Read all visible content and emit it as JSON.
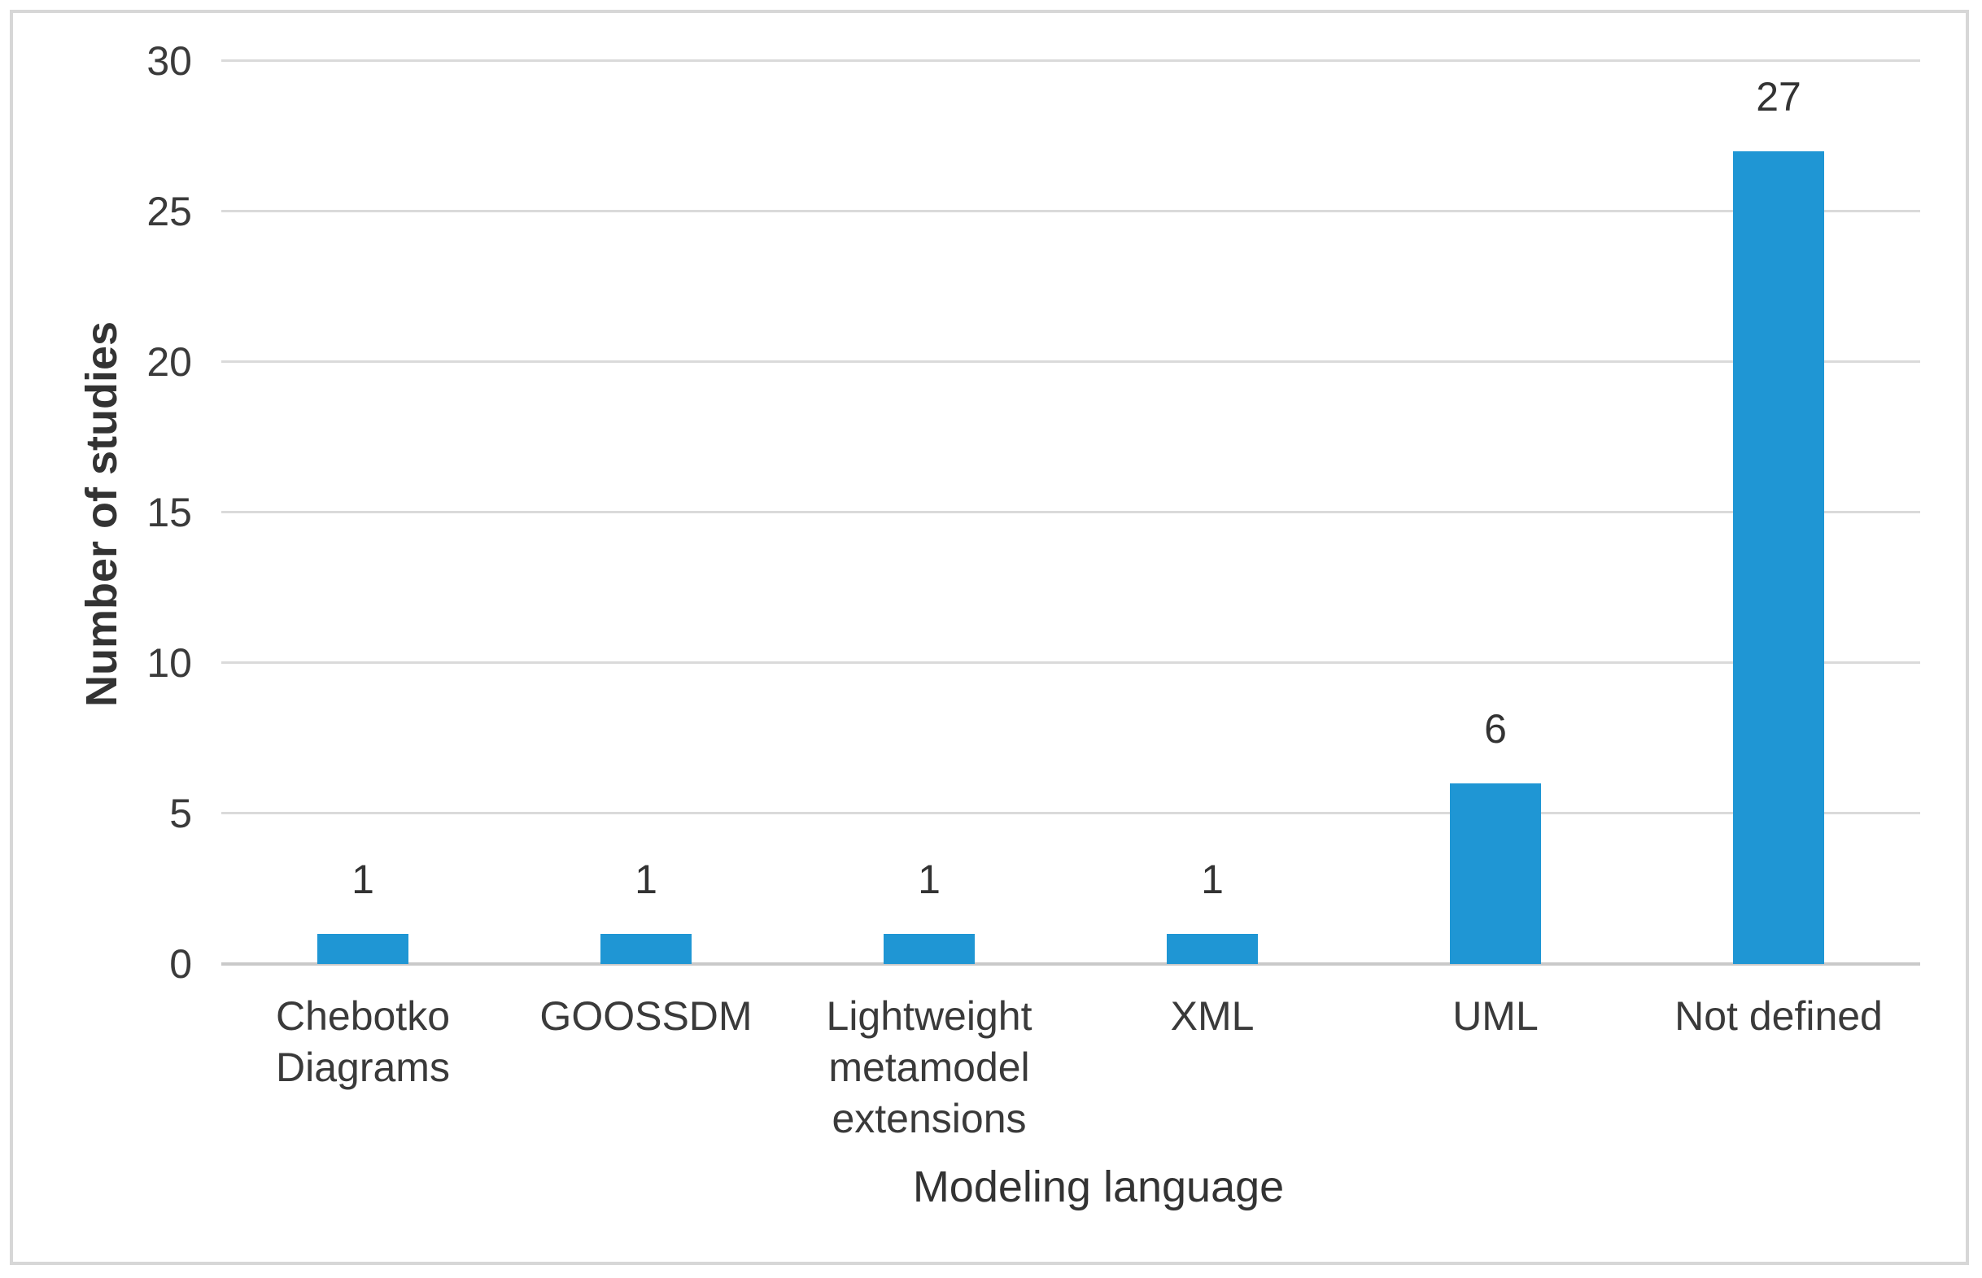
{
  "figure": {
    "background_color": "#ffffff",
    "border_color": "#d7d7d7"
  },
  "chart_data": {
    "type": "bar",
    "title": "",
    "xlabel": "Modeling language",
    "ylabel": "Number of studies",
    "categories": [
      "Chebotko Diagrams",
      "GOOSSDM",
      "Lightweight metamodel extensions",
      "XML",
      "UML",
      "Not defined"
    ],
    "category_lines": [
      [
        "Chebotko",
        "Diagrams"
      ],
      [
        "GOOSSDM"
      ],
      [
        "Lightweight",
        "metamodel",
        "extensions"
      ],
      [
        "XML"
      ],
      [
        "UML"
      ],
      [
        "Not defined"
      ]
    ],
    "values": [
      1,
      1,
      1,
      1,
      6,
      27
    ],
    "ylim": [
      0,
      30
    ],
    "yticks": [
      0,
      5,
      10,
      15,
      20,
      25,
      30
    ],
    "grid": "horizontal",
    "legend": "none",
    "bar_color": "#1f96d4",
    "gridline_color": "#dadada",
    "axis_line_color": "#c9c9c9",
    "text_color": "#3a3a3a"
  }
}
